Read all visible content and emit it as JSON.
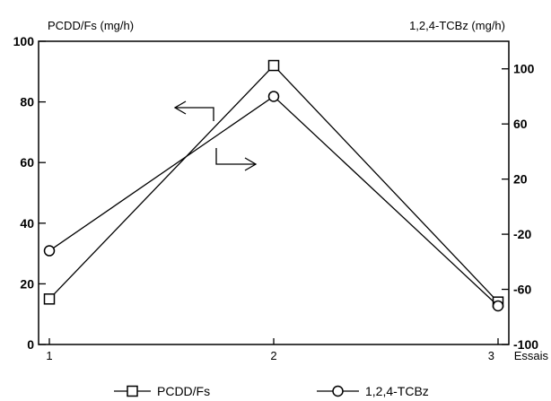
{
  "chart_data": {
    "type": "line",
    "ylabel_left": "PCDD/Fs (mg/h)",
    "ylabel_right": "1,2,4-TCBz (mg/h)",
    "xlabel": "Essais",
    "x": [
      1,
      2,
      3
    ],
    "x_tick_labels": [
      "1",
      "2",
      "3"
    ],
    "ylim_left": [
      0,
      100
    ],
    "ylim_right": [
      -100,
      120
    ],
    "y_ticks_left": [
      "0",
      "20",
      "40",
      "60",
      "80",
      "100"
    ],
    "y_ticks_right": [
      "-100",
      "-60",
      "-20",
      "20",
      "60",
      "100"
    ],
    "grid": false,
    "legend_position": "bottom",
    "series": [
      {
        "name": "PCDD/Fs",
        "axis": "left",
        "marker": "square",
        "values": [
          15,
          92,
          14
        ]
      },
      {
        "name": "1,2,4-TCBz",
        "axis": "right",
        "marker": "circle",
        "values": [
          -32,
          80,
          -72
        ]
      }
    ]
  }
}
